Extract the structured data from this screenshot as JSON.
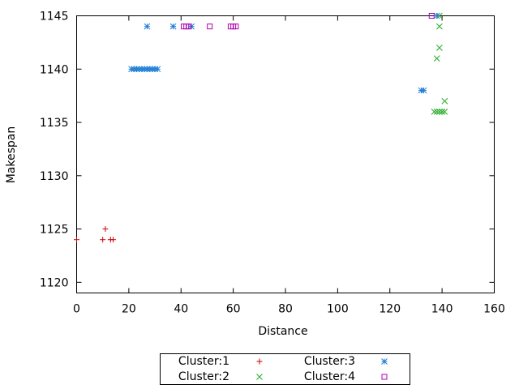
{
  "chart_data": {
    "type": "scatter",
    "title": "",
    "xlabel": "Distance",
    "ylabel": "Makespan",
    "xlim": [
      0,
      160
    ],
    "ylim": [
      1119,
      1145
    ],
    "xticks": [
      0,
      20,
      40,
      60,
      80,
      100,
      120,
      140,
      160
    ],
    "yticks": [
      1120,
      1125,
      1130,
      1135,
      1140,
      1145
    ],
    "grid": false,
    "legend_position": "bottom-center",
    "series": [
      {
        "name": "Cluster:1",
        "marker": "plus",
        "color": "#cc0000",
        "points": [
          [
            0,
            1124
          ],
          [
            10,
            1124
          ],
          [
            11,
            1125
          ],
          [
            13,
            1124
          ],
          [
            14,
            1124
          ]
        ]
      },
      {
        "name": "Cluster:2",
        "marker": "cross",
        "color": "#22aa22",
        "points": [
          [
            137,
            1136
          ],
          [
            138,
            1136
          ],
          [
            138,
            1141
          ],
          [
            139,
            1142
          ],
          [
            139,
            1144
          ],
          [
            139,
            1136
          ],
          [
            140,
            1136
          ],
          [
            140,
            1136
          ],
          [
            141,
            1136
          ],
          [
            141,
            1137
          ],
          [
            139,
            1145
          ]
        ]
      },
      {
        "name": "Cluster:3",
        "marker": "star",
        "color": "#1e7fd6",
        "points": [
          [
            21,
            1140
          ],
          [
            22,
            1140
          ],
          [
            23,
            1140
          ],
          [
            24,
            1140
          ],
          [
            25,
            1140
          ],
          [
            26,
            1140
          ],
          [
            27,
            1140
          ],
          [
            28,
            1140
          ],
          [
            29,
            1140
          ],
          [
            30,
            1140
          ],
          [
            31,
            1140
          ],
          [
            27,
            1144
          ],
          [
            37,
            1144
          ],
          [
            44,
            1144
          ],
          [
            132,
            1138
          ],
          [
            133,
            1138
          ],
          [
            138,
            1145
          ]
        ]
      },
      {
        "name": "Cluster:4",
        "marker": "square",
        "color": "#b000b0",
        "points": [
          [
            41,
            1144
          ],
          [
            42,
            1144
          ],
          [
            43,
            1144
          ],
          [
            51,
            1144
          ],
          [
            59,
            1144
          ],
          [
            60,
            1144
          ],
          [
            61,
            1144
          ],
          [
            136,
            1145
          ]
        ]
      }
    ]
  }
}
